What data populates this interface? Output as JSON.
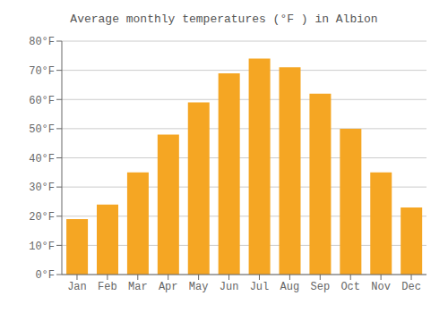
{
  "chart_data": {
    "type": "bar",
    "title": "Average monthly temperatures (°F ) in Albion",
    "categories": [
      "Jan",
      "Feb",
      "Mar",
      "Apr",
      "May",
      "Jun",
      "Jul",
      "Aug",
      "Sep",
      "Oct",
      "Nov",
      "Dec"
    ],
    "values": [
      19,
      24,
      35,
      48,
      59,
      69,
      74,
      71,
      62,
      50,
      35,
      23
    ],
    "color": "#F5A623",
    "ylim": [
      0,
      80
    ],
    "yticks": [
      {
        "value": 0,
        "label": "0°F"
      },
      {
        "value": 10,
        "label": "10°F"
      },
      {
        "value": 20,
        "label": "20°F"
      },
      {
        "value": 30,
        "label": "30°F"
      },
      {
        "value": 40,
        "label": "40°F"
      },
      {
        "value": 50,
        "label": "50°F"
      },
      {
        "value": 60,
        "label": "60°F"
      },
      {
        "value": 70,
        "label": "70°F"
      },
      {
        "value": 80,
        "label": "80°F"
      }
    ],
    "grid": true
  }
}
